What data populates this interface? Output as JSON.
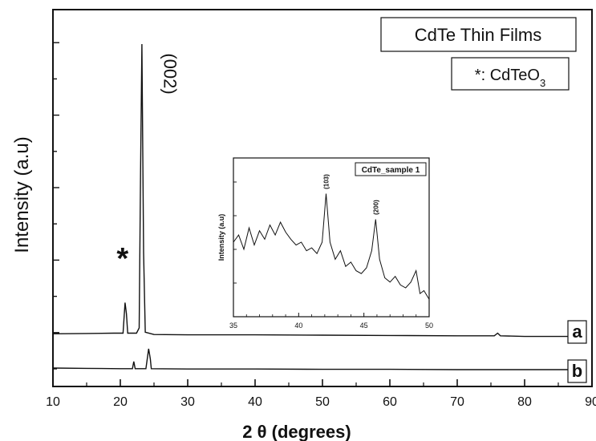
{
  "chart_data": [
    {
      "type": "line",
      "xlabel": "2 θ (degrees)",
      "ylabel": "Intensity (a.u)",
      "xlim": [
        10,
        90
      ],
      "x_ticks": [
        "10",
        "20",
        "30",
        "40",
        "50",
        "60",
        "70",
        "80",
        "90"
      ],
      "y_tick_labels": "none",
      "legend": [
        "CdTe Thin Films",
        "*: CdTeO3"
      ],
      "annotations": {
        "peak_label": "(002)",
        "peak_label_x": 23.3,
        "marker": "*",
        "marker_x": 20.8
      },
      "series": [
        {
          "name": "a",
          "points": [
            [
              10,
              0.11
            ],
            [
              15,
              0.111
            ],
            [
              19,
              0.112
            ],
            [
              20.4,
              0.112
            ],
            [
              20.7,
              0.206
            ],
            [
              20.9,
              0.172
            ],
            [
              21.1,
              0.112
            ],
            [
              22.4,
              0.112
            ],
            [
              22.8,
              0.128
            ],
            [
              23.0,
              0.6
            ],
            [
              23.2,
              1.0
            ],
            [
              23.45,
              0.36
            ],
            [
              23.7,
              0.115
            ],
            [
              25,
              0.108
            ],
            [
              30,
              0.107
            ],
            [
              40,
              0.107
            ],
            [
              50,
              0.106
            ],
            [
              60,
              0.105
            ],
            [
              70,
              0.104
            ],
            [
              75.5,
              0.104
            ],
            [
              76.0,
              0.112
            ],
            [
              76.4,
              0.104
            ],
            [
              80,
              0.102
            ],
            [
              88.5,
              0.102
            ]
          ]
        },
        {
          "name": "b",
          "points": [
            [
              10,
              0.005
            ],
            [
              15,
              0.004
            ],
            [
              20,
              0.003
            ],
            [
              21.8,
              0.003
            ],
            [
              22.0,
              0.025
            ],
            [
              22.2,
              0.003
            ],
            [
              23.8,
              0.003
            ],
            [
              24.2,
              0.064
            ],
            [
              24.45,
              0.033
            ],
            [
              24.6,
              0.003
            ],
            [
              30,
              0.002
            ],
            [
              40,
              0.002
            ],
            [
              50,
              0.001
            ],
            [
              60,
              0.001
            ],
            [
              70,
              0.0
            ],
            [
              80,
              0.0
            ],
            [
              88.5,
              0.0
            ]
          ]
        }
      ]
    },
    {
      "type": "line",
      "title": "CdTe_sample 1",
      "ylabel": "Intensity (a.u)",
      "xlim": [
        35,
        50
      ],
      "x_ticks": [
        "35",
        "40",
        "45",
        "50"
      ],
      "annotations": [
        {
          "label": "(103)",
          "x": 42.1
        },
        {
          "label": "(200)",
          "x": 45.9
        }
      ],
      "series": [
        {
          "name": "CdTe_sample 1",
          "points": [
            [
              35.0,
              0.5
            ],
            [
              35.4,
              0.55
            ],
            [
              35.8,
              0.45
            ],
            [
              36.2,
              0.6
            ],
            [
              36.6,
              0.48
            ],
            [
              37.0,
              0.58
            ],
            [
              37.4,
              0.52
            ],
            [
              37.8,
              0.62
            ],
            [
              38.2,
              0.55
            ],
            [
              38.6,
              0.64
            ],
            [
              39.0,
              0.57
            ],
            [
              39.4,
              0.52
            ],
            [
              39.8,
              0.48
            ],
            [
              40.2,
              0.5
            ],
            [
              40.6,
              0.44
            ],
            [
              41.0,
              0.46
            ],
            [
              41.4,
              0.42
            ],
            [
              41.8,
              0.5
            ],
            [
              42.1,
              0.84
            ],
            [
              42.4,
              0.5
            ],
            [
              42.8,
              0.38
            ],
            [
              43.2,
              0.44
            ],
            [
              43.6,
              0.33
            ],
            [
              44.0,
              0.36
            ],
            [
              44.4,
              0.3
            ],
            [
              44.8,
              0.28
            ],
            [
              45.2,
              0.32
            ],
            [
              45.6,
              0.44
            ],
            [
              45.9,
              0.66
            ],
            [
              46.2,
              0.38
            ],
            [
              46.6,
              0.25
            ],
            [
              47.0,
              0.22
            ],
            [
              47.4,
              0.26
            ],
            [
              47.8,
              0.2
            ],
            [
              48.2,
              0.18
            ],
            [
              48.6,
              0.22
            ],
            [
              49.0,
              0.3
            ],
            [
              49.3,
              0.14
            ],
            [
              49.6,
              0.16
            ],
            [
              50.0,
              0.1
            ]
          ]
        }
      ]
    }
  ]
}
